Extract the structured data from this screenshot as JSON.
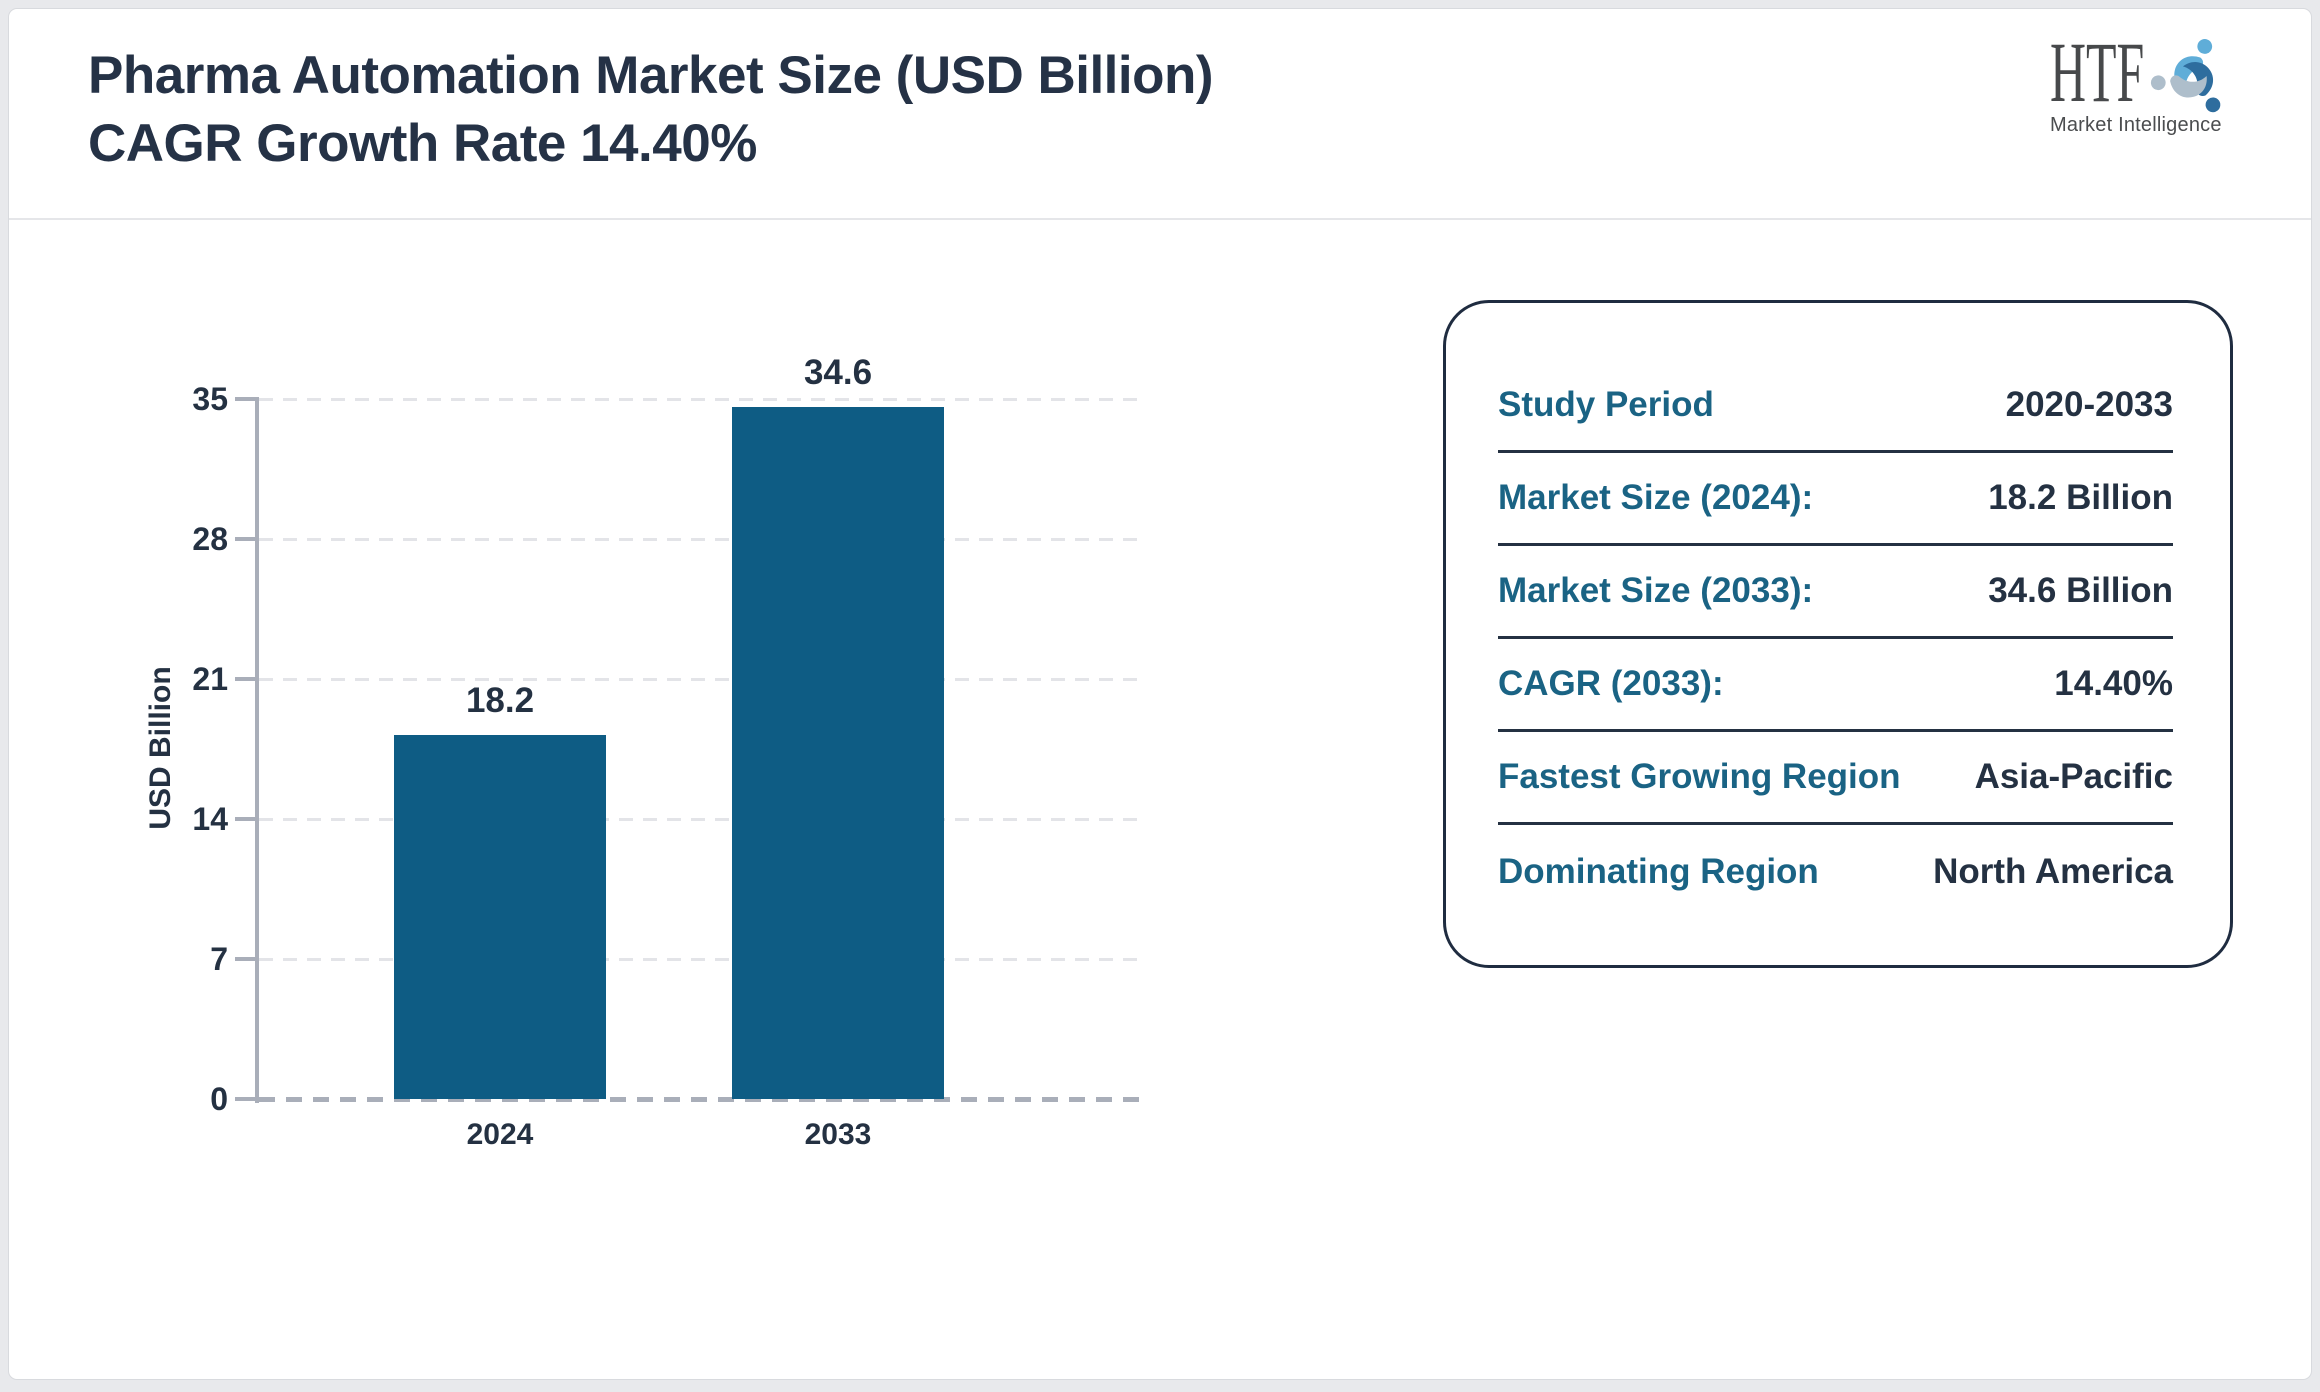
{
  "header": {
    "title_line1": "Pharma Automation Market Size (USD Billion)",
    "title_line2": "CAGR Growth Rate 14.40%"
  },
  "logo": {
    "text": "HTF",
    "subtext": "Market Intelligence",
    "swirl_colors": [
      "#5fadd8",
      "#2e6d9e",
      "#aebecb"
    ]
  },
  "chart_data": {
    "type": "bar",
    "title": "Pharma Automation Market Size (USD Billion) CAGR Growth Rate 14.40%",
    "categories": [
      "2024",
      "2033"
    ],
    "values": [
      18.2,
      34.6
    ],
    "value_labels": [
      "18.2",
      "34.6"
    ],
    "xlabel": "",
    "ylabel": "USD Billion",
    "yticks": [
      35,
      28,
      21,
      14,
      7,
      0
    ],
    "ylim": [
      0,
      35
    ],
    "grid": "horizontal-dashed",
    "legend": "none",
    "bar_color": "#0e5c84",
    "axis_color": "#a9aeb9",
    "tick_label_color": "#243142"
  },
  "info_panel": {
    "rows": [
      {
        "label": "Study Period",
        "value": "2020-2033"
      },
      {
        "label": "Market Size (2024):",
        "value": "18.2 Billion"
      },
      {
        "label": "Market Size (2033):",
        "value": "34.6 Billion"
      },
      {
        "label": "CAGR (2033):",
        "value": "14.40%"
      },
      {
        "label": "Fastest Growing Region",
        "value": "Asia-Pacific"
      },
      {
        "label": "Dominating Region",
        "value": "North America"
      }
    ],
    "label_color": "#1a6384",
    "value_color": "#243142"
  },
  "colors": {
    "page_background": "#e8e9ec",
    "card_background": "#ffffff",
    "card_border": "#d8dade",
    "title_text": "#253246",
    "panel_border": "#1f2c40"
  }
}
